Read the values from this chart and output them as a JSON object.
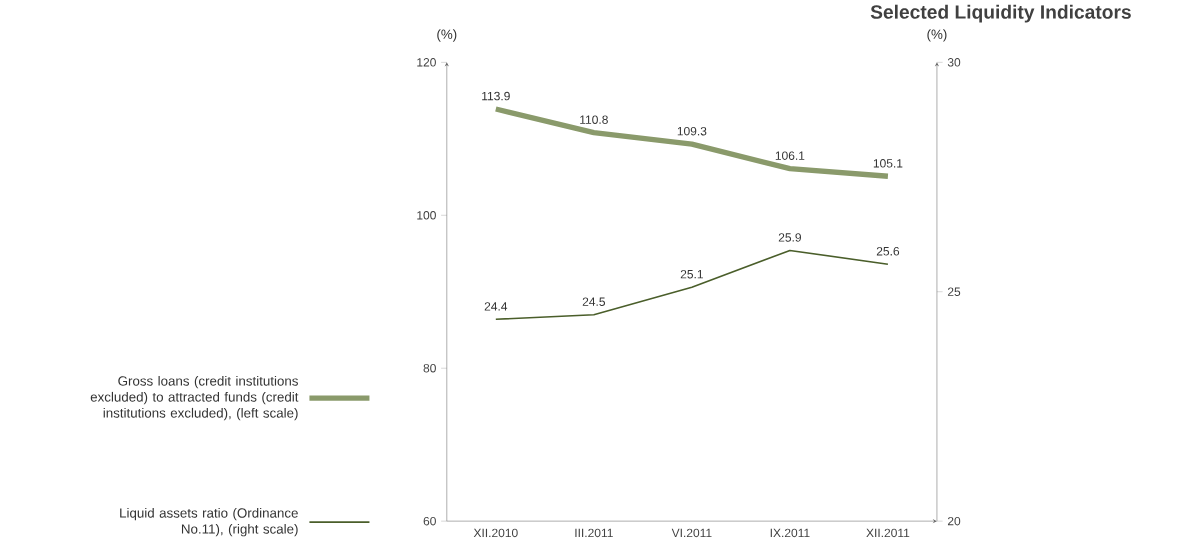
{
  "chart_data": {
    "type": "line",
    "title": "Selected Liquidity Indicators",
    "ylabel": "(%)",
    "y2label": "(%)",
    "categories": [
      "XII.2010",
      "III.2011",
      "VI.2011",
      "IX.2011",
      "XII.2011"
    ],
    "series": [
      {
        "name": "Gross loans (credit institutions excluded) to attracted funds (credit institutions excluded), (left scale)",
        "color": "#8a9a6b",
        "values": [
          113.9,
          110.8,
          109.3,
          106.1,
          105.1
        ]
      },
      {
        "name": "Liquid assets ratio (Ordinance No.11), (right scale)",
        "color": "#4a5e2a",
        "values": [
          24.4,
          24.5,
          25.1,
          25.9,
          25.6
        ],
        "axis": "y2"
      }
    ],
    "ylim": [
      60,
      120
    ],
    "yticks": [
      60,
      80,
      100,
      120
    ],
    "y2lim": [
      20,
      30
    ],
    "y2ticks": [
      20,
      25,
      30
    ],
    "data_labels": true,
    "legend": "left",
    "grid": false,
    "marker": "none",
    "line_style": "solid"
  }
}
